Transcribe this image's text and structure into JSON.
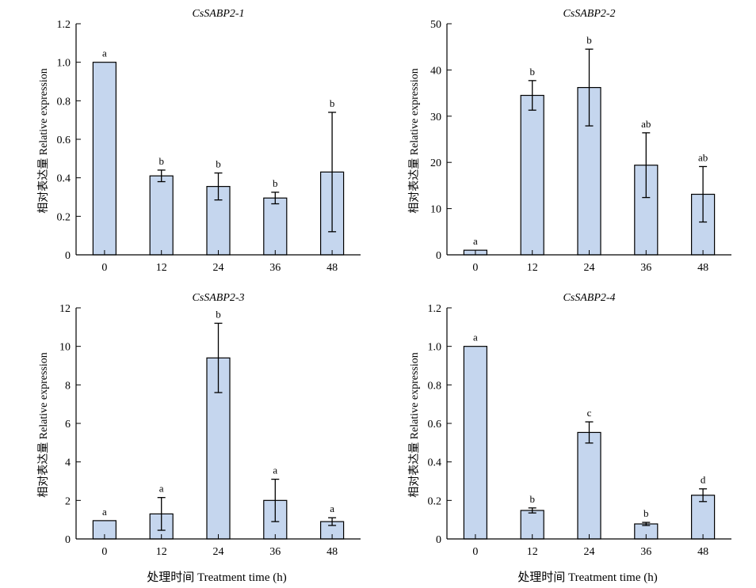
{
  "xlabel": "处理时间 Treatment time (h)",
  "ylabel": "相对表达量 Relative expression",
  "colors": {
    "bar_fill": "#c5d6ee",
    "bar_stroke": "#000000",
    "axis": "#000000"
  },
  "chart_data": [
    {
      "type": "bar",
      "title": "CsSABP2-1",
      "categories": [
        "0",
        "12",
        "24",
        "36",
        "48"
      ],
      "values": [
        1.0,
        0.41,
        0.355,
        0.295,
        0.43
      ],
      "errors": [
        0,
        0.03,
        0.07,
        0.03,
        0.31
      ],
      "labels": [
        "a",
        "b",
        "b",
        "b",
        "b"
      ],
      "ylim": [
        0,
        1.2
      ],
      "yticks": [
        "0",
        "0.2",
        "0.4",
        "0.6",
        "0.8",
        "1.0",
        "1.2"
      ],
      "xlabel": "",
      "ylabel": "相对表达量 Relative expression"
    },
    {
      "type": "bar",
      "title": "CsSABP2-2",
      "categories": [
        "0",
        "12",
        "24",
        "36",
        "48"
      ],
      "values": [
        1.0,
        34.5,
        36.2,
        19.4,
        13.1
      ],
      "errors": [
        0,
        3.2,
        8.3,
        7.0,
        6.0
      ],
      "labels": [
        "a",
        "b",
        "b",
        "ab",
        "ab"
      ],
      "ylim": [
        0,
        50
      ],
      "yticks": [
        "0",
        "10",
        "20",
        "30",
        "40",
        "50"
      ],
      "xlabel": "",
      "ylabel": "相对表达量 Relative expression"
    },
    {
      "type": "bar",
      "title": "CsSABP2-3",
      "categories": [
        "0",
        "12",
        "24",
        "36",
        "48"
      ],
      "values": [
        0.95,
        1.3,
        9.4,
        2.0,
        0.9
      ],
      "errors": [
        0,
        0.85,
        1.8,
        1.1,
        0.2
      ],
      "labels": [
        "a",
        "a",
        "b",
        "a",
        "a"
      ],
      "ylim": [
        0,
        12
      ],
      "yticks": [
        "0",
        "2",
        "4",
        "6",
        "8",
        "10",
        "12"
      ],
      "xlabel": "处理时间 Treatment time (h)",
      "ylabel": "相对表达量 Relative expression"
    },
    {
      "type": "bar",
      "title": "CsSABP2-4",
      "categories": [
        "0",
        "12",
        "24",
        "36",
        "48"
      ],
      "values": [
        1.0,
        0.148,
        0.553,
        0.078,
        0.227
      ],
      "errors": [
        0,
        0.013,
        0.055,
        0.008,
        0.033
      ],
      "labels": [
        "a",
        "b",
        "c",
        "b",
        "d"
      ],
      "ylim": [
        0,
        1.2
      ],
      "yticks": [
        "0",
        "0.2",
        "0.4",
        "0.6",
        "0.8",
        "1.0",
        "1.2"
      ],
      "xlabel": "处理时间 Treatment time (h)",
      "ylabel": "相对表达量 Relative expression"
    }
  ]
}
